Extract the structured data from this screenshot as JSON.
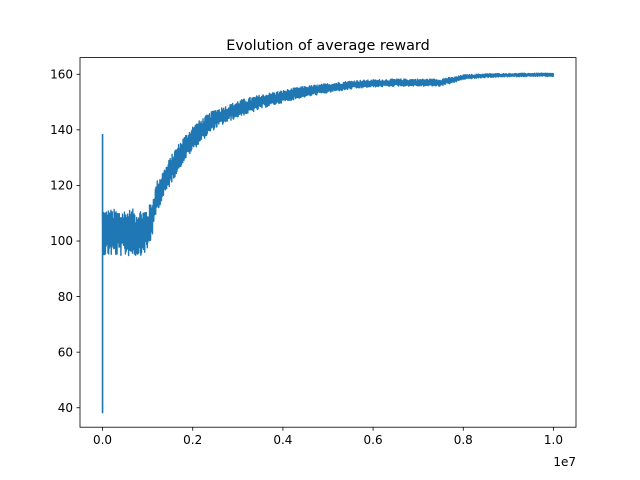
{
  "chart_data": {
    "type": "line",
    "title": "Evolution of average reward",
    "xlabel": "",
    "ylabel": "",
    "x_offset_label": "1e7",
    "xlim": [
      -0.05,
      1.05
    ],
    "ylim": [
      33,
      166
    ],
    "xticks": [
      0.0,
      0.2,
      0.4,
      0.6,
      0.8,
      1.0
    ],
    "xtick_labels": [
      "0.0",
      "0.2",
      "0.4",
      "0.6",
      "0.8",
      "1.0"
    ],
    "yticks": [
      40,
      60,
      80,
      100,
      120,
      140,
      160
    ],
    "ytick_labels": [
      "40",
      "60",
      "80",
      "100",
      "120",
      "140",
      "160"
    ],
    "grid": false,
    "series": [
      {
        "name": "average reward",
        "color": "#1f77b4",
        "spikes": [
          [
            0.0,
            38
          ],
          [
            0.0,
            138.5
          ],
          [
            0.0,
            96
          ]
        ],
        "x": [
          0.0,
          0.005,
          0.02,
          0.05,
          0.08,
          0.1,
          0.11,
          0.12,
          0.14,
          0.16,
          0.18,
          0.2,
          0.22,
          0.25,
          0.28,
          0.3,
          0.33,
          0.36,
          0.4,
          0.44,
          0.48,
          0.52,
          0.56,
          0.6,
          0.65,
          0.7,
          0.75,
          0.76,
          0.78,
          0.8,
          0.85,
          0.9,
          0.95,
          1.0
        ],
        "y": [
          104,
          103,
          103,
          103,
          103,
          104,
          108,
          116,
          122,
          128,
          133,
          137,
          140,
          144,
          146,
          147.5,
          149,
          150.5,
          152,
          153.5,
          154.5,
          155.5,
          156.3,
          156.7,
          157,
          157,
          157,
          157.5,
          158,
          159,
          159.5,
          159.7,
          159.8,
          159.8
        ],
        "band": [
          8.5,
          8.5,
          8.5,
          8.5,
          8.5,
          8,
          6.5,
          5.5,
          5,
          5,
          4.5,
          4.5,
          4,
          3.5,
          3,
          3,
          2.8,
          2.5,
          2.2,
          2,
          1.8,
          1.6,
          1.5,
          1.3,
          1.3,
          1.3,
          1.3,
          1.2,
          1,
          0.8,
          0.7,
          0.6,
          0.6,
          0.6
        ]
      }
    ]
  }
}
